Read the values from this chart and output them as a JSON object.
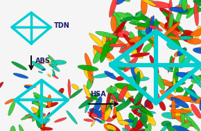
{
  "background_color": "#f5f5f5",
  "tdn_color": "#00CED1",
  "tdn_linewidth_small": 2.5,
  "tdn_linewidth_medium": 3.0,
  "tdn_linewidth_large": 4.5,
  "label_TDN": "TDN",
  "label_ABS": "ABS",
  "label_HSA": "HSA",
  "label_color": "#1a1a6e",
  "label_fontsize": 7,
  "arrow_color": "#111111",
  "protein_colors": [
    "#cc0000",
    "#00aa00",
    "#ffcc00",
    "#0055cc",
    "#00ccaa",
    "#ff6600",
    "#009933",
    "#ff3333",
    "#33cc33"
  ]
}
